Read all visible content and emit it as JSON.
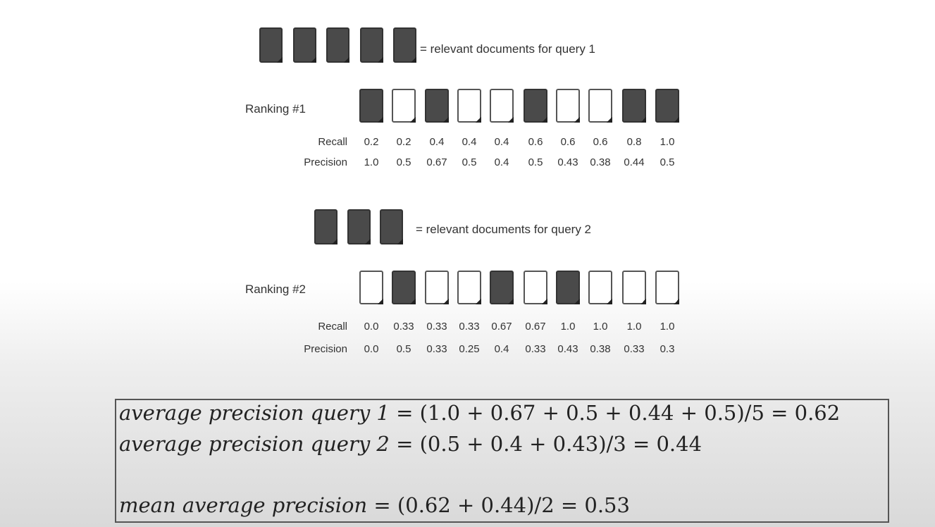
{
  "query1": {
    "relevant_count": 5,
    "legend_label": "= relevant documents for query 1",
    "ranking_label": "Ranking #1",
    "relevance": [
      1,
      0,
      1,
      0,
      0,
      1,
      0,
      0,
      1,
      1
    ],
    "recall_label": "Recall",
    "precision_label": "Precision",
    "recall": [
      "0.2",
      "0.2",
      "0.4",
      "0.4",
      "0.4",
      "0.6",
      "0.6",
      "0.6",
      "0.8",
      "1.0"
    ],
    "precision": [
      "1.0",
      "0.5",
      "0.67",
      "0.5",
      "0.4",
      "0.5",
      "0.43",
      "0.38",
      "0.44",
      "0.5"
    ]
  },
  "query2": {
    "relevant_count": 3,
    "legend_label": "= relevant documents for query 2",
    "ranking_label": "Ranking #2",
    "relevance": [
      0,
      1,
      0,
      0,
      1,
      0,
      1,
      0,
      0,
      0
    ],
    "recall_label": "Recall",
    "precision_label": "Precision",
    "recall": [
      "0.0",
      "0.33",
      "0.33",
      "0.33",
      "0.67",
      "0.67",
      "1.0",
      "1.0",
      "1.0",
      "1.0"
    ],
    "precision": [
      "0.0",
      "0.5",
      "0.33",
      "0.25",
      "0.4",
      "0.33",
      "0.43",
      "0.38",
      "0.33",
      "0.3"
    ]
  },
  "formulas": {
    "ap1_label": "average precision query 1",
    "ap1_expr": "= (1.0 + 0.67 + 0.5 + 0.44 + 0.5)/5 = 0.62",
    "ap2_label": "average precision query 2",
    "ap2_expr": "= (0.5 + 0.4 + 0.43)/3 = 0.44",
    "map_label": "mean average precision",
    "map_expr": "= (0.62 + 0.44)/2 = 0.53"
  },
  "colors": {
    "relevant_doc": "#4a4a4a",
    "nonrelevant_doc": "#ffffff"
  }
}
